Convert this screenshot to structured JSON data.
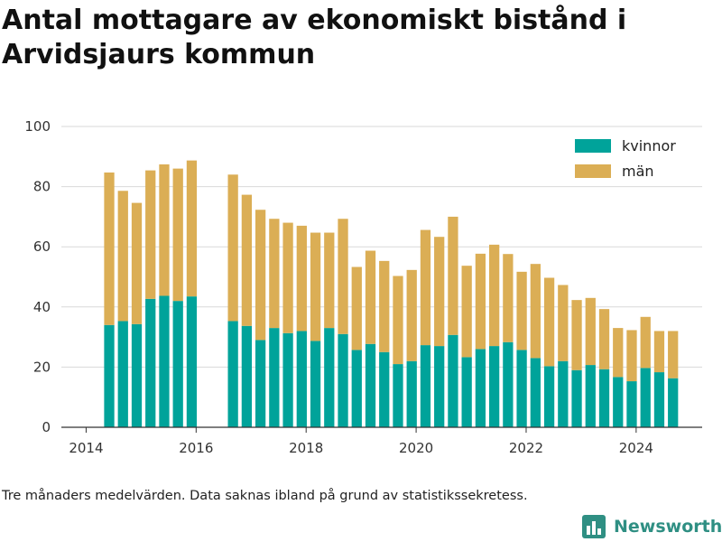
{
  "title": "Antal mottagare av ekonomiskt bistånd i Arvidsjaurs kommun",
  "note": "Tre månaders medelvärden. Data saknas ibland på grund av statistikssekretess.",
  "brand": {
    "name": "Newsworthy",
    "icon": "bar-chart-logo-icon",
    "color": "#2f8f83"
  },
  "chart_data": {
    "type": "bar",
    "stacked": true,
    "x_unit": "year",
    "xlim": [
      2013.55,
      2025.2
    ],
    "ylim": [
      0,
      100
    ],
    "x_ticks": [
      {
        "value": 2014,
        "label": "2014"
      },
      {
        "value": 2016,
        "label": "2016"
      },
      {
        "value": 2018,
        "label": "2018"
      },
      {
        "value": 2020,
        "label": "2020"
      },
      {
        "value": 2022,
        "label": "2022"
      },
      {
        "value": 2024,
        "label": "2024"
      }
    ],
    "y_ticks": [
      {
        "value": 0,
        "label": "0"
      },
      {
        "value": 20,
        "label": "20"
      },
      {
        "value": 40,
        "label": "40"
      },
      {
        "value": 60,
        "label": "60"
      },
      {
        "value": 80,
        "label": "80"
      },
      {
        "value": 100,
        "label": "100"
      }
    ],
    "grid": true,
    "legend": "top-right",
    "x": [
      2014.42,
      2014.67,
      2014.92,
      2015.17,
      2015.42,
      2015.67,
      2015.92,
      2016.67,
      2016.92,
      2017.17,
      2017.42,
      2017.67,
      2017.92,
      2018.17,
      2018.42,
      2018.67,
      2018.92,
      2019.17,
      2019.42,
      2019.67,
      2019.92,
      2020.17,
      2020.42,
      2020.67,
      2020.92,
      2021.17,
      2021.42,
      2021.67,
      2021.92,
      2022.17,
      2022.42,
      2022.67,
      2022.92,
      2023.17,
      2023.42,
      2023.67,
      2023.92,
      2024.17,
      2024.42,
      2024.67
    ],
    "series": [
      {
        "name": "kvinnor",
        "color": "#00a39a",
        "values": [
          34,
          35.3,
          34.3,
          42.7,
          43.7,
          42,
          43.5,
          35.3,
          33.7,
          29,
          33,
          31.3,
          32,
          28.7,
          33,
          31,
          25.7,
          27.7,
          25,
          21,
          22,
          27.3,
          27,
          30.7,
          23.3,
          26,
          27,
          28.3,
          25.7,
          23,
          20.3,
          22,
          19,
          20.7,
          19.3,
          16.7,
          15.3,
          19.7,
          18.3,
          16.3
        ]
      },
      {
        "name": "män",
        "color": "#dbae55",
        "values": [
          50.7,
          43.3,
          40.3,
          42.7,
          43.7,
          44,
          45.2,
          48.7,
          43.6,
          43.3,
          36.3,
          36.7,
          35,
          36,
          31.7,
          38.3,
          27.6,
          31,
          30.3,
          29.3,
          30.3,
          38.3,
          36.3,
          39.3,
          30.4,
          31.7,
          33.7,
          29.3,
          26,
          31.3,
          29.4,
          25.3,
          23.3,
          22.3,
          20,
          16.3,
          17,
          17,
          13.7,
          15.7
        ]
      }
    ]
  }
}
